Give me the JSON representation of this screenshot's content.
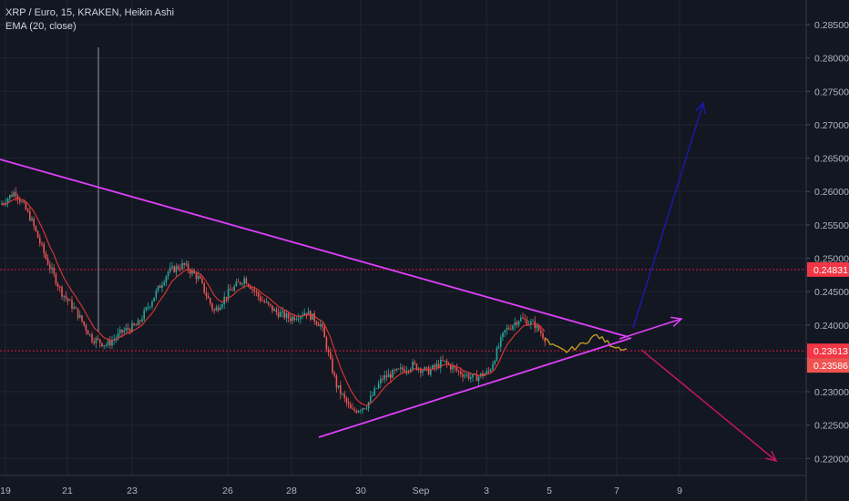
{
  "chart_data": {
    "type": "candlestick",
    "title": "XRP / Euro, 15, KRAKEN, Heikin Ashi",
    "indicator": "EMA (20, close)",
    "ylim": [
      0.218,
      0.2865
    ],
    "y_ticks": [
      "0.28500",
      "0.28000",
      "0.27500",
      "0.27000",
      "0.26500",
      "0.26000",
      "0.25500",
      "0.25000",
      "0.24500",
      "0.24000",
      "0.23500",
      "0.23000",
      "0.22500",
      "0.22000"
    ],
    "x_ticks": [
      "19",
      "21",
      "23",
      "26",
      "28",
      "30",
      "Sep",
      "3",
      "5",
      "7",
      "9"
    ],
    "horizontal_levels": [
      {
        "label": "0.24831",
        "value": 0.24831,
        "color": "#ff1744"
      },
      {
        "label": "0.23613",
        "value": 0.23613,
        "color": "#ff1744"
      },
      {
        "label": "0.23586",
        "value": 0.23586,
        "color": "#ef5350"
      }
    ],
    "price_path": [
      [
        "19",
        0.258
      ],
      [
        "19.5",
        0.26
      ],
      [
        "20",
        0.256
      ],
      [
        "20.5",
        0.25
      ],
      [
        "20.8",
        0.245
      ],
      [
        "21",
        0.242
      ],
      [
        "21.3",
        0.238
      ],
      [
        "21.6",
        0.237
      ],
      [
        "22",
        0.239
      ],
      [
        "22.5",
        0.24
      ],
      [
        "23",
        0.244
      ],
      [
        "23.5",
        0.248
      ],
      [
        "24",
        0.249
      ],
      [
        "24.5",
        0.247
      ],
      [
        "25",
        0.242
      ],
      [
        "25.5",
        0.245
      ],
      [
        "26",
        0.247
      ],
      [
        "26.5",
        0.244
      ],
      [
        "27",
        0.242
      ],
      [
        "27.5",
        0.241
      ],
      [
        "28",
        0.242
      ],
      [
        "28.5",
        0.24
      ],
      [
        "28.7",
        0.231
      ],
      [
        "29",
        0.227
      ],
      [
        "29.5",
        0.228
      ],
      [
        "30",
        0.232
      ],
      [
        "30.5",
        0.233
      ],
      [
        "31",
        0.234
      ],
      [
        "31.5",
        0.233
      ],
      [
        "Sep",
        0.2345
      ],
      [
        "1.5",
        0.233
      ],
      [
        "2",
        0.232
      ],
      [
        "2.5",
        0.233
      ],
      [
        "3",
        0.239
      ],
      [
        "3.5",
        0.241
      ],
      [
        "4",
        0.24
      ],
      [
        "4.5",
        0.237
      ],
      [
        "5",
        0.236
      ],
      [
        "5.5",
        0.237
      ],
      [
        "6",
        0.2385
      ],
      [
        "6.5",
        0.237
      ],
      [
        "7",
        0.2363
      ]
    ],
    "grid": true,
    "legend": "top-left"
  }
}
